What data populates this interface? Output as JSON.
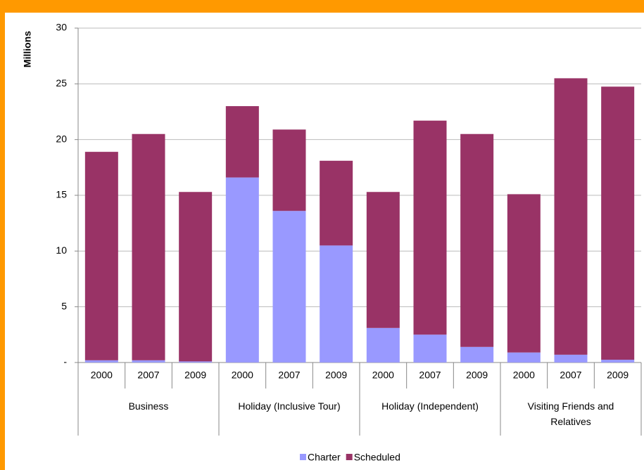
{
  "chart_data": {
    "type": "bar",
    "stacked": true,
    "y_label": "Millions",
    "categories": [
      "2000",
      "2007",
      "2009",
      "2000",
      "2007",
      "2009",
      "2000",
      "2007",
      "2009",
      "2000",
      "2007",
      "2009"
    ],
    "groups": [
      "Business",
      "Holiday (Inclusive Tour)",
      "Holiday (Independent)",
      "Visiting Friends and Relatives"
    ],
    "series": [
      {
        "name": "Charter",
        "color": "#9999ff",
        "values": [
          0.2,
          0.2,
          0.1,
          16.6,
          13.6,
          10.5,
          3.1,
          2.5,
          1.4,
          0.9,
          0.7,
          0.25
        ]
      },
      {
        "name": "Scheduled",
        "color": "#993366",
        "values": [
          18.7,
          20.3,
          15.2,
          6.4,
          7.3,
          7.6,
          12.2,
          19.2,
          19.1,
          14.2,
          24.8,
          24.5
        ]
      }
    ],
    "ylim": [
      0,
      30
    ],
    "yticks": [
      {
        "value": 0,
        "label": "-"
      },
      5,
      10,
      15,
      20,
      25,
      30
    ],
    "grid": true,
    "legend": "bottom"
  }
}
